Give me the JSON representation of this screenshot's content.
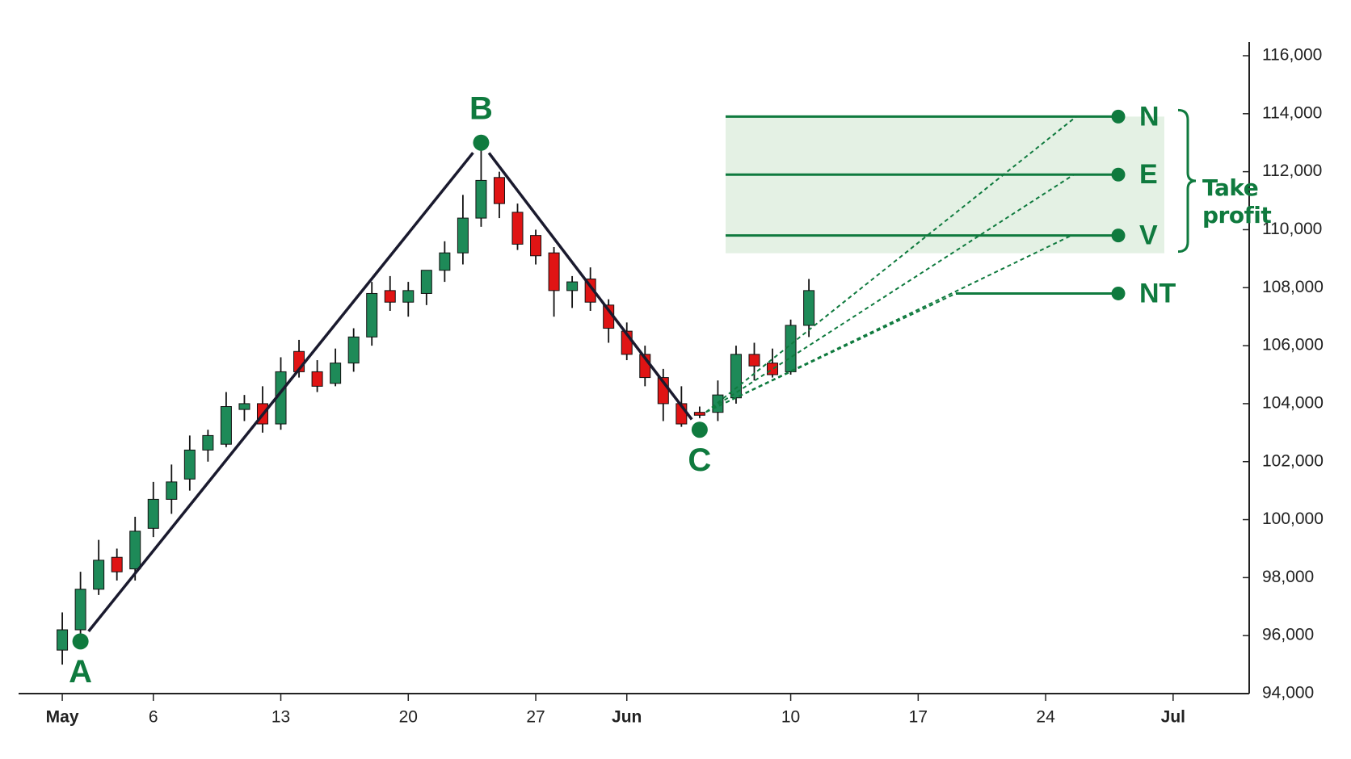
{
  "chart_data": {
    "type": "candlestick",
    "x": [
      "05-01",
      "05-02",
      "05-03",
      "05-04",
      "05-05",
      "05-06",
      "05-07",
      "05-08",
      "05-09",
      "05-10",
      "05-11",
      "05-12",
      "05-13",
      "05-14",
      "05-15",
      "05-16",
      "05-17",
      "05-18",
      "05-19",
      "05-20",
      "05-21",
      "05-22",
      "05-23",
      "05-24",
      "05-25",
      "05-26",
      "05-27",
      "05-28",
      "05-29",
      "05-30",
      "05-31",
      "06-01",
      "06-02",
      "06-03",
      "06-04",
      "06-05",
      "06-06",
      "06-07",
      "06-08",
      "06-09",
      "06-10",
      "06-11"
    ],
    "open": [
      95500,
      96200,
      97600,
      98700,
      98300,
      99700,
      100700,
      101400,
      102400,
      102600,
      103800,
      104000,
      103300,
      105800,
      105100,
      104700,
      105400,
      106300,
      107900,
      107500,
      107800,
      108600,
      109200,
      110400,
      111800,
      110600,
      109800,
      109200,
      107900,
      108300,
      107400,
      106500,
      105700,
      104900,
      104000,
      103700,
      103700,
      104200,
      105700,
      105400,
      105100,
      106700
    ],
    "high": [
      96800,
      98200,
      99300,
      99000,
      100100,
      101300,
      101900,
      102900,
      103100,
      104400,
      104300,
      104600,
      105600,
      106200,
      105500,
      105900,
      106600,
      108200,
      108400,
      108200,
      108600,
      109600,
      111200,
      112800,
      112000,
      110900,
      110000,
      109400,
      108400,
      108700,
      107600,
      106800,
      106000,
      105200,
      104600,
      103900,
      104800,
      106000,
      106100,
      105900,
      106900,
      108300
    ],
    "low": [
      95000,
      95900,
      97400,
      97900,
      97900,
      99400,
      100200,
      101000,
      102000,
      102500,
      103400,
      103000,
      103100,
      104900,
      104400,
      104600,
      105100,
      106000,
      107200,
      107000,
      107400,
      108200,
      108800,
      110100,
      110400,
      109300,
      108800,
      107000,
      107300,
      107200,
      106100,
      105500,
      104600,
      103400,
      103200,
      103500,
      103400,
      104000,
      104800,
      104900,
      105000,
      106300
    ],
    "close": [
      96200,
      97600,
      98600,
      98200,
      99600,
      100700,
      101300,
      102400,
      102900,
      103900,
      104000,
      103300,
      105100,
      105100,
      104600,
      105400,
      106300,
      107800,
      107500,
      107900,
      108600,
      109200,
      110400,
      111700,
      110900,
      109500,
      109100,
      107900,
      108200,
      107500,
      106600,
      105700,
      104900,
      104000,
      103300,
      103600,
      104300,
      105700,
      105300,
      105000,
      106700,
      107900
    ],
    "up_color": "#1e8a58",
    "down_color": "#e01414",
    "xlim": [
      "04-29",
      "07-05"
    ],
    "xticks": [
      {
        "value": "05-01",
        "label": "May"
      },
      {
        "value": "05-06",
        "label": "6"
      },
      {
        "value": "05-13",
        "label": "13"
      },
      {
        "value": "05-20",
        "label": "20"
      },
      {
        "value": "05-27",
        "label": "27"
      },
      {
        "value": "06-01",
        "label": "Jun"
      },
      {
        "value": "06-10",
        "label": "10"
      },
      {
        "value": "06-17",
        "label": "17"
      },
      {
        "value": "06-24",
        "label": "24"
      },
      {
        "value": "07-01",
        "label": "Jul"
      }
    ],
    "ylim": [
      94000,
      116000
    ],
    "yticks": [
      {
        "value": 94000,
        "label": "94,000"
      },
      {
        "value": 96000,
        "label": "96,000"
      },
      {
        "value": 98000,
        "label": "98,000"
      },
      {
        "value": 100000,
        "label": "100,000"
      },
      {
        "value": 102000,
        "label": "102,000"
      },
      {
        "value": 104000,
        "label": "104,000"
      },
      {
        "value": 106000,
        "label": "106,000"
      },
      {
        "value": 108000,
        "label": "108,000"
      },
      {
        "value": 110000,
        "label": "110,000"
      },
      {
        "value": 112000,
        "label": "112,000"
      },
      {
        "value": 114000,
        "label": "114,000"
      },
      {
        "value": 116000,
        "label": "116,000"
      }
    ],
    "pivots": [
      {
        "label": "A",
        "x": "05-02",
        "value": 95800
      },
      {
        "label": "B",
        "x": "05-24",
        "value": 113000
      },
      {
        "label": "C",
        "x": "06-05",
        "value": 103100
      }
    ],
    "targets": [
      {
        "label": "N",
        "value": 113900
      },
      {
        "label": "E",
        "value": 111900
      },
      {
        "label": "V",
        "value": 109800
      },
      {
        "label": "NT",
        "value": 107800
      }
    ],
    "annotation": "Take profit",
    "accent_color": "#0f7a3e",
    "band_color": "#e4f1e4"
  }
}
